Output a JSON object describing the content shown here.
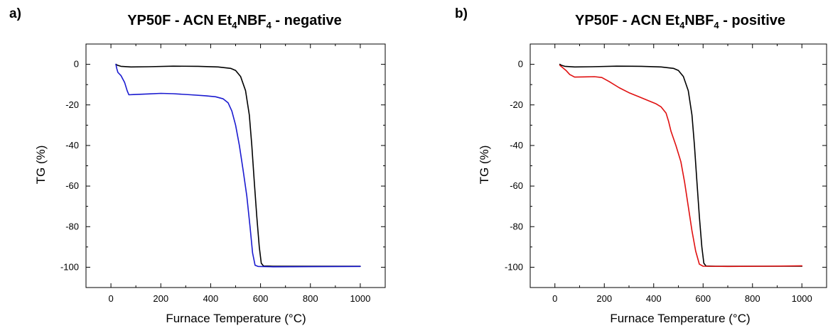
{
  "chart_data": [
    {
      "type": "line",
      "panel_label": "a)",
      "title": {
        "prefix": "YP50F - ACN Et",
        "sub1": "4",
        "middle": "NBF",
        "sub2": "4",
        "suffix": " - negative"
      },
      "xlabel": "Furnace Temperature (°C)",
      "ylabel": "TG (%)",
      "xlim": [
        -100,
        1100
      ],
      "ylim": [
        -110,
        10
      ],
      "xticks": [
        0,
        200,
        400,
        600,
        800,
        1000
      ],
      "yticks": [
        0,
        -20,
        -40,
        -60,
        -80,
        -100
      ],
      "grid": false,
      "series": [
        {
          "color": "#000000",
          "points": [
            [
              20,
              0
            ],
            [
              25,
              -0.4
            ],
            [
              40,
              -1
            ],
            [
              80,
              -1.3
            ],
            [
              150,
              -1.2
            ],
            [
              250,
              -0.9
            ],
            [
              350,
              -1
            ],
            [
              430,
              -1.3
            ],
            [
              480,
              -2
            ],
            [
              500,
              -3
            ],
            [
              520,
              -6
            ],
            [
              540,
              -13
            ],
            [
              555,
              -25
            ],
            [
              565,
              -40
            ],
            [
              575,
              -58
            ],
            [
              585,
              -75
            ],
            [
              595,
              -90
            ],
            [
              603,
              -98
            ],
            [
              612,
              -99.4
            ],
            [
              650,
              -99.5
            ],
            [
              800,
              -99.5
            ],
            [
              1000,
              -99.5
            ]
          ]
        },
        {
          "color": "#1a1ad0",
          "points": [
            [
              20,
              0
            ],
            [
              23,
              -2
            ],
            [
              28,
              -4
            ],
            [
              40,
              -5.5
            ],
            [
              55,
              -9
            ],
            [
              65,
              -13
            ],
            [
              72,
              -15
            ],
            [
              90,
              -14.9
            ],
            [
              150,
              -14.6
            ],
            [
              200,
              -14.3
            ],
            [
              250,
              -14.5
            ],
            [
              320,
              -15
            ],
            [
              380,
              -15.5
            ],
            [
              420,
              -16
            ],
            [
              450,
              -17
            ],
            [
              470,
              -19
            ],
            [
              485,
              -23
            ],
            [
              500,
              -30
            ],
            [
              515,
              -40
            ],
            [
              530,
              -52
            ],
            [
              545,
              -65
            ],
            [
              558,
              -80
            ],
            [
              568,
              -93
            ],
            [
              578,
              -99
            ],
            [
              590,
              -99.6
            ],
            [
              650,
              -99.8
            ],
            [
              800,
              -99.7
            ],
            [
              1000,
              -99.6
            ]
          ]
        }
      ]
    },
    {
      "type": "line",
      "panel_label": "b)",
      "title": {
        "prefix": "YP50F - ACN Et",
        "sub1": "4",
        "middle": "NBF",
        "sub2": "4",
        "suffix": " - positive"
      },
      "xlabel": "Furnace Temperature (°C)",
      "ylabel": "TG (%)",
      "xlim": [
        -100,
        1100
      ],
      "ylim": [
        -110,
        10
      ],
      "xticks": [
        0,
        200,
        400,
        600,
        800,
        1000
      ],
      "yticks": [
        0,
        -20,
        -40,
        -60,
        -80,
        -100
      ],
      "grid": false,
      "series": [
        {
          "color": "#000000",
          "points": [
            [
              20,
              0
            ],
            [
              25,
              -0.4
            ],
            [
              40,
              -1
            ],
            [
              80,
              -1.3
            ],
            [
              150,
              -1.2
            ],
            [
              250,
              -0.9
            ],
            [
              350,
              -1
            ],
            [
              430,
              -1.3
            ],
            [
              480,
              -2
            ],
            [
              500,
              -3
            ],
            [
              520,
              -6
            ],
            [
              540,
              -13
            ],
            [
              555,
              -25
            ],
            [
              565,
              -40
            ],
            [
              575,
              -58
            ],
            [
              585,
              -75
            ],
            [
              595,
              -90
            ],
            [
              603,
              -98
            ],
            [
              612,
              -99.4
            ],
            [
              650,
              -99.5
            ],
            [
              800,
              -99.5
            ],
            [
              1000,
              -99.5
            ]
          ]
        },
        {
          "color": "#e01010",
          "points": [
            [
              20,
              -0.5
            ],
            [
              30,
              -1.5
            ],
            [
              45,
              -3
            ],
            [
              60,
              -5
            ],
            [
              80,
              -6.3
            ],
            [
              120,
              -6.2
            ],
            [
              160,
              -6.1
            ],
            [
              190,
              -6.5
            ],
            [
              220,
              -8.5
            ],
            [
              260,
              -11.5
            ],
            [
              300,
              -14
            ],
            [
              340,
              -16
            ],
            [
              380,
              -18
            ],
            [
              410,
              -19.5
            ],
            [
              430,
              -21
            ],
            [
              450,
              -24
            ],
            [
              460,
              -28
            ],
            [
              470,
              -33
            ],
            [
              490,
              -40
            ],
            [
              510,
              -48
            ],
            [
              525,
              -58
            ],
            [
              540,
              -70
            ],
            [
              555,
              -82
            ],
            [
              570,
              -92
            ],
            [
              585,
              -98.5
            ],
            [
              600,
              -99.5
            ],
            [
              700,
              -99.6
            ],
            [
              850,
              -99.5
            ],
            [
              1000,
              -99.3
            ]
          ]
        }
      ]
    }
  ]
}
